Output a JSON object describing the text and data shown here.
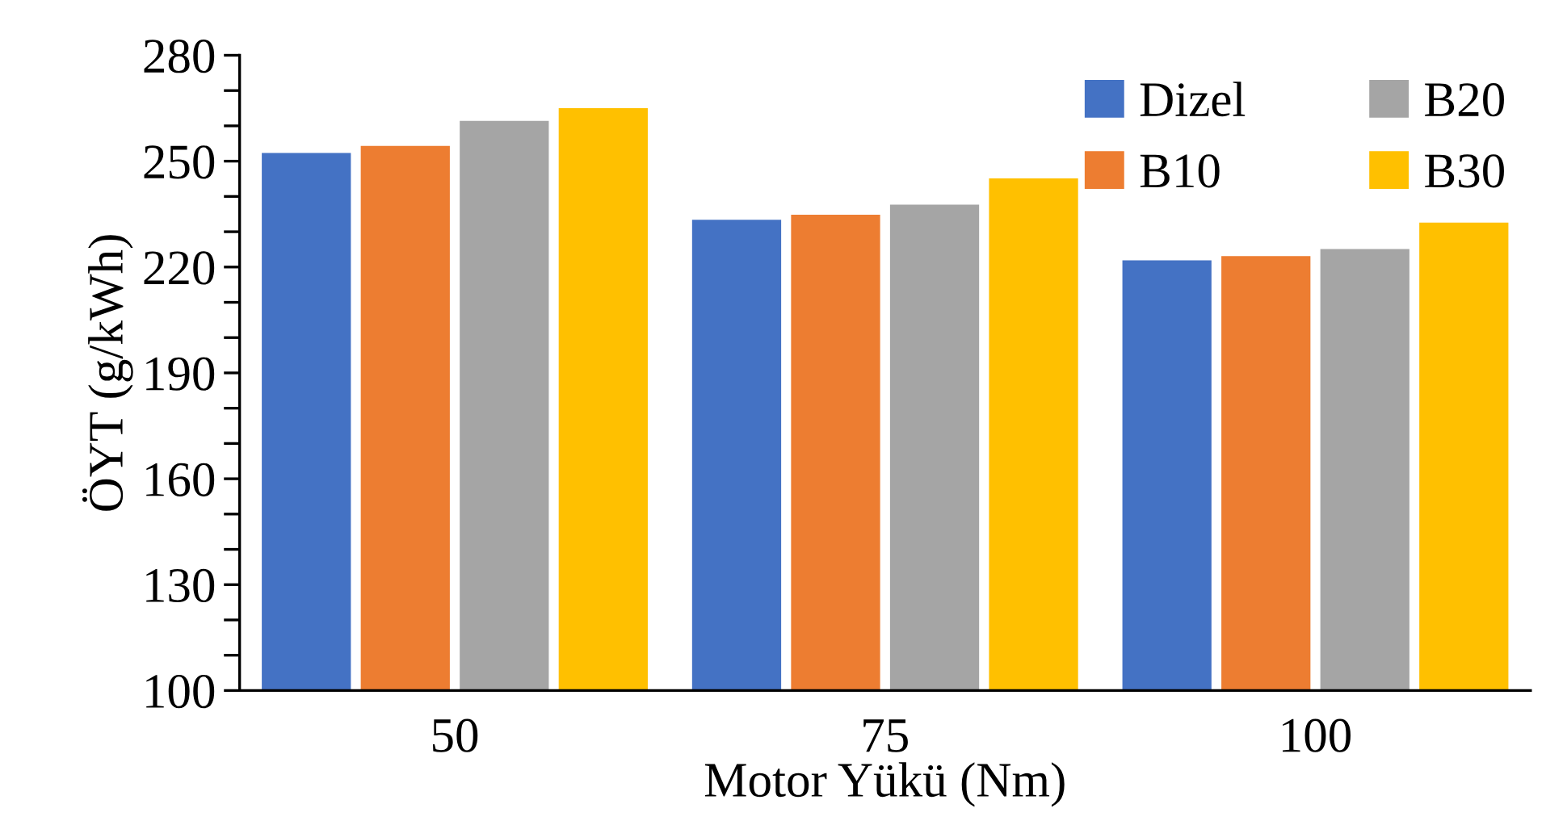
{
  "chart_data": {
    "type": "bar",
    "xlabel": "Motor Yükü (Nm)",
    "ylabel": "ÖYT (g/kWh)",
    "categories": [
      "50",
      "75",
      "100"
    ],
    "series": [
      {
        "name": "Dizel",
        "color": "#4472c4",
        "values": [
          252.3,
          233.4,
          221.9
        ]
      },
      {
        "name": "B10",
        "color": "#ed7d31",
        "values": [
          254.3,
          234.8,
          223.1
        ]
      },
      {
        "name": "B20",
        "color": "#a5a5a5",
        "values": [
          261.4,
          237.7,
          225.1
        ]
      },
      {
        "name": "B30",
        "color": "#ffc000",
        "values": [
          265,
          245.1,
          232.6
        ]
      }
    ],
    "ylim": [
      100,
      280
    ],
    "yticks": [
      100,
      130,
      160,
      190,
      220,
      250,
      280
    ],
    "grid": false,
    "legend": "top right"
  }
}
